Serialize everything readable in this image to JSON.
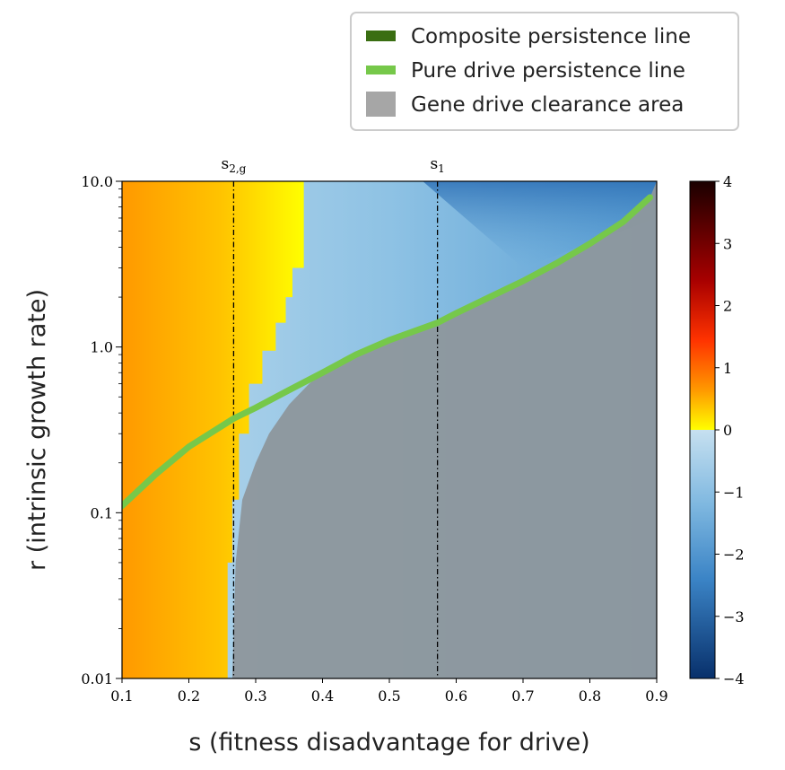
{
  "chart_data": {
    "type": "heatmap",
    "title": "",
    "xlabel": "s (fitness disadvantage for drive)",
    "ylabel": "r (intrinsic growth rate)",
    "xlim": [
      0.1,
      0.9
    ],
    "ylim": [
      0.01,
      10.0
    ],
    "yscale": "log",
    "x_ticks": [
      "0.1",
      "0.2",
      "0.3",
      "0.4",
      "0.5",
      "0.6",
      "0.7",
      "0.8",
      "0.9"
    ],
    "y_ticks": [
      "0.01",
      "0.1",
      "1.0",
      "10.0"
    ],
    "colorbar": {
      "min": -4,
      "max": 4,
      "ticks": [
        "4",
        "3",
        "2",
        "1",
        "0",
        "−1",
        "−2",
        "−3",
        "−4"
      ]
    },
    "vertical_markers": [
      {
        "label": "s",
        "sub": "2,g",
        "x": 0.267
      },
      {
        "label": "s",
        "sub": "1",
        "x": 0.572
      }
    ],
    "legend": {
      "placement": "top-right",
      "entries": [
        {
          "label": "Composite persistence line",
          "color": "#3a6e12",
          "kind": "bar"
        },
        {
          "label": "Pure drive persistence line",
          "color": "#76c84a",
          "kind": "line"
        },
        {
          "label": "Gene drive clearance area",
          "color": "#a6a6a6",
          "kind": "patch"
        }
      ]
    },
    "series": [
      {
        "name": "Pure drive persistence line",
        "color": "#76c84a",
        "x": [
          0.1,
          0.15,
          0.2,
          0.267,
          0.3,
          0.35,
          0.4,
          0.45,
          0.5,
          0.572,
          0.6,
          0.65,
          0.7,
          0.75,
          0.8,
          0.85,
          0.89
        ],
        "y": [
          0.11,
          0.17,
          0.25,
          0.37,
          0.43,
          0.55,
          0.7,
          0.9,
          1.1,
          1.4,
          1.6,
          2.0,
          2.5,
          3.2,
          4.2,
          5.7,
          8.0
        ]
      },
      {
        "name": "Gene drive clearance area",
        "color": "#a6a6a6",
        "x": [
          0.265,
          0.27,
          0.28,
          0.3,
          0.32,
          0.35,
          0.38,
          0.4,
          0.45,
          0.5,
          0.6,
          0.7,
          0.8,
          0.85,
          0.89
        ],
        "y": [
          0.01,
          0.05,
          0.12,
          0.2,
          0.3,
          0.45,
          0.6,
          0.7,
          0.9,
          1.1,
          1.6,
          2.5,
          4.2,
          5.7,
          8.0
        ]
      }
    ]
  }
}
